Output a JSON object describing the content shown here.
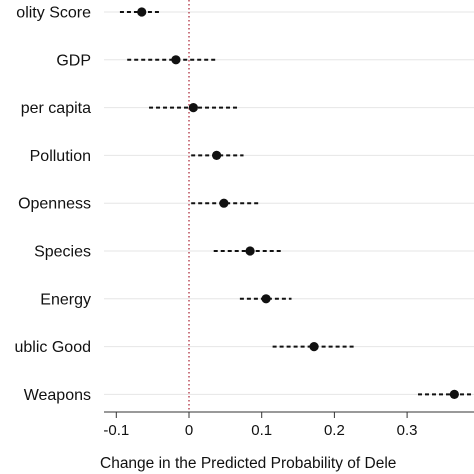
{
  "chart_data": {
    "type": "scatter",
    "subtype": "coefficient-plot-with-intervals",
    "title": "",
    "xlabel": "Change in the Predicted Probability of Dele",
    "ylabel": "",
    "xlim": [
      -0.13,
      0.38
    ],
    "x_ticks": [
      -0.1,
      0,
      0.1,
      0.2,
      0.3
    ],
    "x_tick_labels": [
      "-0.1",
      "0",
      "0.1",
      "0.2",
      "0.3"
    ],
    "reference_line": {
      "x": 0,
      "style": "dotted",
      "color": "#b03040"
    },
    "grid": true,
    "categories": [
      "olity Score",
      "GDP",
      "per capita",
      "Pollution",
      "Openness",
      "Species",
      "Energy",
      "ublic Good",
      "Weapons"
    ],
    "estimates": [
      -0.065,
      -0.018,
      0.006,
      0.038,
      0.048,
      0.084,
      0.106,
      0.172,
      0.365
    ],
    "ci_low": [
      -0.095,
      -0.085,
      -0.055,
      0.003,
      0.003,
      0.034,
      0.07,
      0.115,
      0.315
    ],
    "ci_high": [
      -0.038,
      0.04,
      0.068,
      0.075,
      0.098,
      0.13,
      0.141,
      0.23,
      0.42
    ],
    "colors": {
      "marker": "#111111",
      "grid": "#e6e6e6",
      "axis": "#333333"
    }
  }
}
